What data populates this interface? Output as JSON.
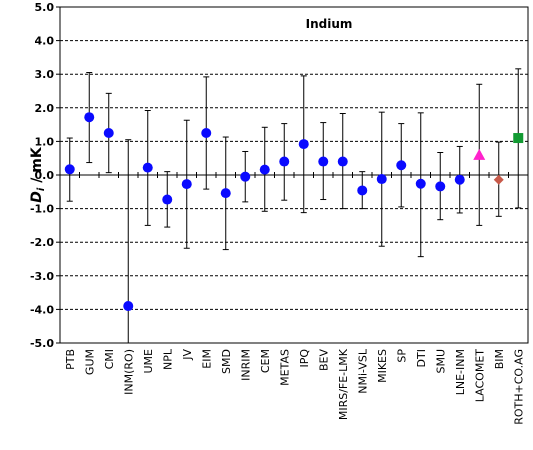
{
  "chart_data": {
    "type": "scatter",
    "title": "Indium",
    "ylabel_main": "D",
    "ylabel_sub": "i",
    "ylabel_unit": " / mK",
    "ylim": [
      -5,
      5
    ],
    "y_ticks": [
      "5.0",
      "4.0",
      "3.0",
      "2.0",
      "1.0",
      "0.0",
      "-1.0",
      "-2.0",
      "-3.0",
      "-4.0",
      "-5.0"
    ],
    "grid": "horizontal-dashed",
    "categories": [
      "PTB",
      "GUM",
      "CMI",
      "INM(RO)",
      "UME",
      "NPL",
      "JV",
      "EIM",
      "SMD",
      "INRIM",
      "CEM",
      "METAS",
      "IPQ",
      "BEV",
      "MIRS/FE-LMK",
      "NMi-VSL",
      "MIKES",
      "SP",
      "DTI",
      "SMU",
      "LNE-INM",
      "LACOMET",
      "BIM",
      "ROTH+CO.AG"
    ],
    "values": [
      0.17,
      1.72,
      1.25,
      -3.9,
      0.22,
      -0.73,
      -0.27,
      1.25,
      -0.54,
      -0.05,
      0.16,
      0.4,
      0.92,
      0.4,
      0.4,
      -0.46,
      -0.12,
      0.29,
      -0.26,
      -0.34,
      -0.14,
      0.6,
      -0.14,
      1.1
    ],
    "upper": [
      1.1,
      3.05,
      2.43,
      1.05,
      1.92,
      0.1,
      1.63,
      2.92,
      1.13,
      0.7,
      1.42,
      1.53,
      2.95,
      1.56,
      1.83,
      0.1,
      1.87,
      1.53,
      1.85,
      0.67,
      0.85,
      2.7,
      0.98,
      3.16
    ],
    "lower": [
      -0.78,
      0.37,
      0.07,
      -5.0,
      -1.5,
      -1.55,
      -2.18,
      -0.42,
      -2.22,
      -0.8,
      -1.08,
      -0.75,
      -1.12,
      -0.73,
      -1.0,
      -1.0,
      -2.12,
      -0.95,
      -2.43,
      -1.33,
      -1.13,
      -1.5,
      -1.23,
      -0.98
    ],
    "markers": [
      "circle",
      "circle",
      "circle",
      "circle",
      "circle",
      "circle",
      "circle",
      "circle",
      "circle",
      "circle",
      "circle",
      "circle",
      "circle",
      "circle",
      "circle",
      "circle",
      "circle",
      "circle",
      "circle",
      "circle",
      "circle",
      "triangle",
      "diamond",
      "square"
    ],
    "colors": {
      "circle": "#0a0aff",
      "triangle": "#ff22cc",
      "diamond": "#c85a4a",
      "square": "#129a32",
      "error_bar": "#000000",
      "grid": "#000000",
      "axis": "#000000"
    }
  }
}
